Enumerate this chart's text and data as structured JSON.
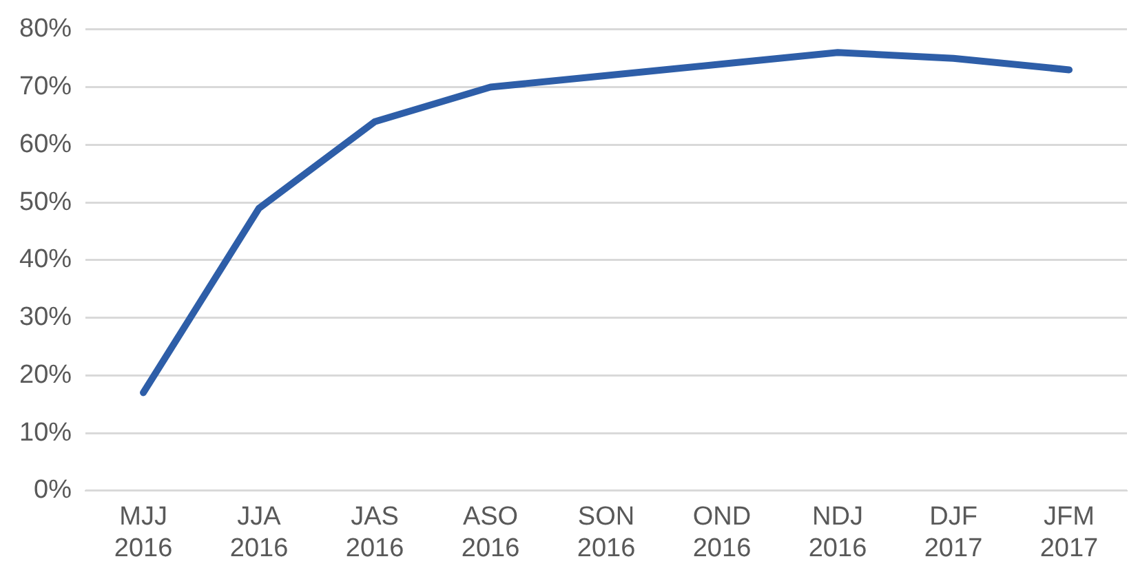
{
  "chart_data": {
    "type": "line",
    "categories": [
      "MJJ 2016",
      "JJA 2016",
      "JAS 2016",
      "ASO 2016",
      "SON 2016",
      "OND 2016",
      "NDJ 2016",
      "DJF 2017",
      "JFM 2017"
    ],
    "series": [
      {
        "color": "#2e5ea8",
        "values": [
          17,
          49,
          64,
          70,
          72,
          74,
          76,
          75,
          73
        ]
      }
    ],
    "ylim": [
      0,
      80
    ],
    "yticks": [
      {
        "value": 0,
        "label": "0%"
      },
      {
        "value": 10,
        "label": "10%"
      },
      {
        "value": 20,
        "label": "20%"
      },
      {
        "value": 30,
        "label": "30%"
      },
      {
        "value": 40,
        "label": "40%"
      },
      {
        "value": 50,
        "label": "50%"
      },
      {
        "value": 60,
        "label": "60%"
      },
      {
        "value": 70,
        "label": "70%"
      },
      {
        "value": 80,
        "label": "80%"
      }
    ],
    "grid": "y",
    "legend": false,
    "marker": "none",
    "line_style": "solid"
  }
}
